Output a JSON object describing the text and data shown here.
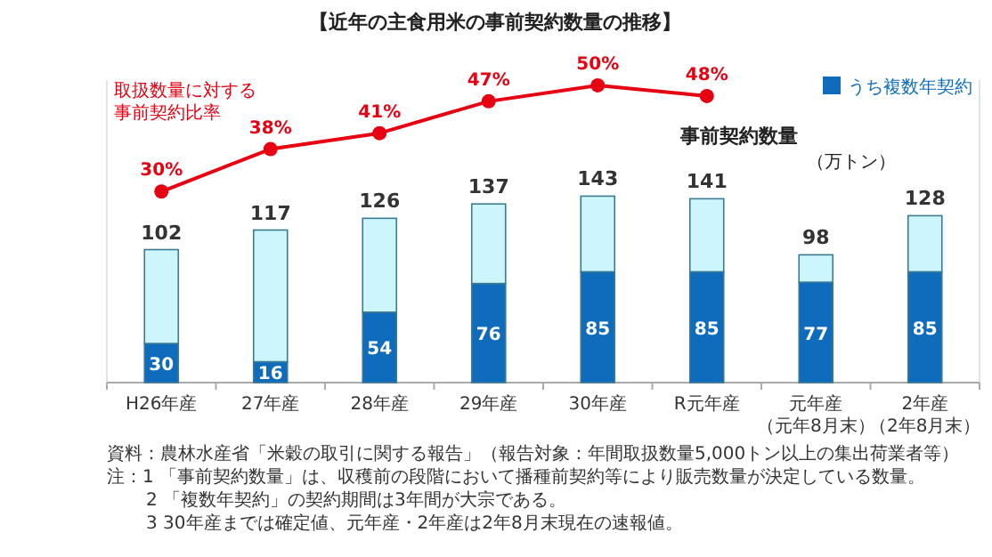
{
  "chart_data": {
    "type": "bar",
    "title": "【近年の主食用米の事前契約数量の推移】",
    "categories": [
      "H26年産",
      "27年産",
      "28年産",
      "29年産",
      "30年産",
      "R元年産",
      "元年産（元年8月末）",
      "2年産（2年8月末）"
    ],
    "stacked": true,
    "ylim": [
      0,
      232
    ],
    "y2lim": [
      -6,
      51
    ],
    "tick_labels": "x",
    "legend": "top right",
    "marker": "circle",
    "series": [
      {
        "name": "うち複数年契約",
        "color": "#0f6cbd",
        "values": [
          30,
          16,
          54,
          76,
          85,
          85,
          77,
          85
        ],
        "value_labels": [
          "30",
          "16",
          "54",
          "76",
          "85",
          "85",
          "77",
          "85"
        ]
      },
      {
        "color": "#ccf6fb",
        "values": [
          72,
          101,
          72,
          61,
          58,
          56,
          21,
          43
        ]
      },
      {
        "type": "line",
        "axis": "y2",
        "name": "取扱数量に対する事前契約比率",
        "color": "#e60012",
        "values": [
          30,
          38,
          41,
          47,
          50,
          48,
          null,
          null
        ],
        "value_labels": [
          "30%",
          "38%",
          "41%",
          "47%",
          "50%",
          "48%",
          null,
          null
        ]
      }
    ],
    "totals": [
      "102",
      "117",
      "126",
      "137",
      "143",
      "141",
      "98",
      "128"
    ],
    "annotations": [
      "事前契約数量",
      "（万トン）",
      "資料：農林水産省「米穀の取引に関する報告」（報告対象：年間取扱数量5,000トン以上の集出荷業者等）",
      "注：1 「事前契約数量」は、収穫前の段階において播種前契約等により販売数量が決定している数量。",
      "2 「複数年契約」の契約期間は3年間が大宗である。",
      "3 30年産までは確定値、元年産・2年産は2年8月末現在の速報値。"
    ]
  }
}
